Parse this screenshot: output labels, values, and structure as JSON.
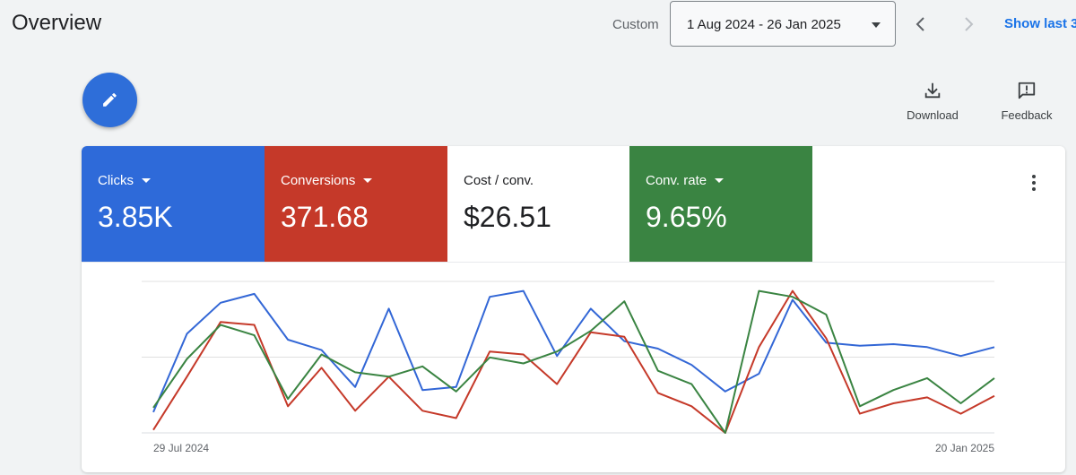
{
  "header": {
    "title": "Overview",
    "custom_label": "Custom",
    "date_range": "1 Aug 2024 - 26 Jan 2025",
    "show_last": "Show last 3"
  },
  "toolbar": {
    "download_label": "Download",
    "feedback_label": "Feedback"
  },
  "metrics": [
    {
      "label": "Clicks",
      "value": "3.85K",
      "color": "#2e6ad9",
      "has_dropdown": true
    },
    {
      "label": "Conversions",
      "value": "371.68",
      "color": "#c53929",
      "has_dropdown": true
    },
    {
      "label": "Cost / conv.",
      "value": "$26.51",
      "color": "#ffffff",
      "has_dropdown": false
    },
    {
      "label": "Conv. rate",
      "value": "9.65%",
      "color": "#3a8442",
      "has_dropdown": true
    }
  ],
  "icons": {
    "edit": "pencil-icon",
    "download": "download-icon",
    "feedback": "feedback-icon",
    "more": "more-vert-icon",
    "prev": "chevron-left-icon",
    "next": "chevron-right-icon"
  },
  "chart_data": {
    "type": "line",
    "x_start_label": "29 Jul 2024",
    "x_end_label": "20 Jan 2025",
    "grid": true,
    "ylim": [
      0,
      100
    ],
    "series": [
      {
        "color": "#3367d6",
        "values": [
          14,
          67,
          88,
          94,
          63,
          56,
          31,
          84,
          29,
          31,
          92,
          96,
          52,
          84,
          62,
          57,
          46,
          28,
          40,
          90,
          61,
          59,
          60,
          58,
          52,
          58
        ]
      },
      {
        "color": "#c53929",
        "values": [
          2,
          38,
          75,
          73,
          18,
          44,
          15,
          38,
          15,
          10,
          55,
          53,
          33,
          68,
          65,
          27,
          18,
          0,
          58,
          96,
          64,
          13,
          20,
          24,
          13,
          25
        ]
      },
      {
        "color": "#3a8442",
        "values": [
          17,
          50,
          73,
          66,
          23,
          53,
          41,
          38,
          45,
          28,
          51,
          47,
          55,
          69,
          89,
          42,
          33,
          0,
          96,
          92,
          80,
          18,
          29,
          37,
          20,
          37
        ]
      }
    ]
  }
}
